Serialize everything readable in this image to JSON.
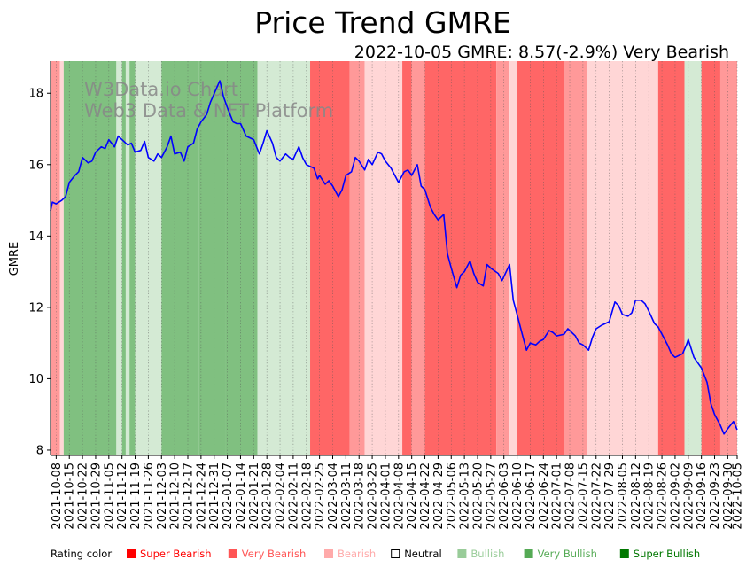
{
  "chart_data": {
    "type": "line",
    "title": "Price Trend GMRE",
    "subtitle": "2022-10-05 GMRE: 8.57(-2.9%) Very Bearish",
    "ylabel": "GMRE",
    "xlabel": "",
    "ylim": [
      7.85,
      18.9
    ],
    "yticks": [
      8,
      10,
      12,
      14,
      16,
      18
    ],
    "x_start": "2021-10-05",
    "x_end": "2022-10-05",
    "xticks": [
      "2021-10-08",
      "2021-10-15",
      "2021-10-22",
      "2021-10-29",
      "2021-11-05",
      "2021-11-12",
      "2021-11-19",
      "2021-11-26",
      "2021-12-03",
      "2021-12-10",
      "2021-12-17",
      "2021-12-24",
      "2021-12-31",
      "2022-01-07",
      "2022-01-14",
      "2022-01-21",
      "2022-01-28",
      "2022-02-04",
      "2022-02-11",
      "2022-02-18",
      "2022-02-25",
      "2022-03-04",
      "2022-03-11",
      "2022-03-18",
      "2022-03-25",
      "2022-04-01",
      "2022-04-08",
      "2022-04-15",
      "2022-04-22",
      "2022-04-29",
      "2022-05-06",
      "2022-05-13",
      "2022-05-20",
      "2022-05-27",
      "2022-06-03",
      "2022-06-10",
      "2022-06-17",
      "2022-06-24",
      "2022-07-01",
      "2022-07-08",
      "2022-07-15",
      "2022-07-22",
      "2022-07-29",
      "2022-08-05",
      "2022-08-12",
      "2022-08-19",
      "2022-08-26",
      "2022-09-02",
      "2022-09-09",
      "2022-09-16",
      "2022-09-23",
      "2022-09-30",
      "2022-10-05"
    ],
    "series": [
      {
        "name": "GMRE",
        "color": "#0000ff",
        "points": [
          [
            "2021-10-05",
            14.7
          ],
          [
            "2021-10-06",
            14.95
          ],
          [
            "2021-10-08",
            14.9
          ],
          [
            "2021-10-11",
            15.0
          ],
          [
            "2021-10-13",
            15.1
          ],
          [
            "2021-10-15",
            15.5
          ],
          [
            "2021-10-18",
            15.7
          ],
          [
            "2021-10-20",
            15.8
          ],
          [
            "2021-10-22",
            16.2
          ],
          [
            "2021-10-25",
            16.05
          ],
          [
            "2021-10-27",
            16.1
          ],
          [
            "2021-10-29",
            16.35
          ],
          [
            "2021-11-01",
            16.5
          ],
          [
            "2021-11-03",
            16.45
          ],
          [
            "2021-11-05",
            16.7
          ],
          [
            "2021-11-08",
            16.5
          ],
          [
            "2021-11-10",
            16.8
          ],
          [
            "2021-11-12",
            16.7
          ],
          [
            "2021-11-15",
            16.55
          ],
          [
            "2021-11-17",
            16.6
          ],
          [
            "2021-11-19",
            16.35
          ],
          [
            "2021-11-22",
            16.4
          ],
          [
            "2021-11-24",
            16.65
          ],
          [
            "2021-11-26",
            16.2
          ],
          [
            "2021-11-29",
            16.1
          ],
          [
            "2021-12-01",
            16.3
          ],
          [
            "2021-12-03",
            16.2
          ],
          [
            "2021-12-06",
            16.5
          ],
          [
            "2021-12-08",
            16.8
          ],
          [
            "2021-12-10",
            16.3
          ],
          [
            "2021-12-13",
            16.35
          ],
          [
            "2021-12-15",
            16.1
          ],
          [
            "2021-12-17",
            16.5
          ],
          [
            "2021-12-20",
            16.6
          ],
          [
            "2021-12-22",
            17.0
          ],
          [
            "2021-12-24",
            17.2
          ],
          [
            "2021-12-27",
            17.4
          ],
          [
            "2021-12-29",
            17.75
          ],
          [
            "2022-01-03",
            18.35
          ],
          [
            "2022-01-05",
            17.9
          ],
          [
            "2022-01-07",
            17.6
          ],
          [
            "2022-01-10",
            17.2
          ],
          [
            "2022-01-12",
            17.15
          ],
          [
            "2022-01-14",
            17.15
          ],
          [
            "2022-01-17",
            16.8
          ],
          [
            "2022-01-19",
            16.75
          ],
          [
            "2022-01-21",
            16.7
          ],
          [
            "2022-01-24",
            16.3
          ],
          [
            "2022-01-26",
            16.6
          ],
          [
            "2022-01-28",
            16.95
          ],
          [
            "2022-01-31",
            16.6
          ],
          [
            "2022-02-02",
            16.2
          ],
          [
            "2022-02-04",
            16.1
          ],
          [
            "2022-02-07",
            16.3
          ],
          [
            "2022-02-09",
            16.2
          ],
          [
            "2022-02-11",
            16.15
          ],
          [
            "2022-02-14",
            16.5
          ],
          [
            "2022-02-16",
            16.2
          ],
          [
            "2022-02-18",
            16.0
          ],
          [
            "2022-02-22",
            15.9
          ],
          [
            "2022-02-24",
            15.6
          ],
          [
            "2022-02-25",
            15.7
          ],
          [
            "2022-02-28",
            15.45
          ],
          [
            "2022-03-02",
            15.55
          ],
          [
            "2022-03-04",
            15.4
          ],
          [
            "2022-03-07",
            15.1
          ],
          [
            "2022-03-09",
            15.3
          ],
          [
            "2022-03-11",
            15.7
          ],
          [
            "2022-03-14",
            15.8
          ],
          [
            "2022-03-16",
            16.2
          ],
          [
            "2022-03-18",
            16.1
          ],
          [
            "2022-03-21",
            15.85
          ],
          [
            "2022-03-23",
            16.15
          ],
          [
            "2022-03-25",
            16.0
          ],
          [
            "2022-03-28",
            16.35
          ],
          [
            "2022-03-30",
            16.3
          ],
          [
            "2022-04-01",
            16.1
          ],
          [
            "2022-04-04",
            15.9
          ],
          [
            "2022-04-06",
            15.7
          ],
          [
            "2022-04-08",
            15.5
          ],
          [
            "2022-04-11",
            15.8
          ],
          [
            "2022-04-13",
            15.85
          ],
          [
            "2022-04-15",
            15.7
          ],
          [
            "2022-04-18",
            16.0
          ],
          [
            "2022-04-20",
            15.4
          ],
          [
            "2022-04-22",
            15.3
          ],
          [
            "2022-04-25",
            14.8
          ],
          [
            "2022-04-27",
            14.6
          ],
          [
            "2022-04-29",
            14.45
          ],
          [
            "2022-05-02",
            14.6
          ],
          [
            "2022-05-04",
            13.5
          ],
          [
            "2022-05-06",
            13.1
          ],
          [
            "2022-05-09",
            12.55
          ],
          [
            "2022-05-11",
            12.9
          ],
          [
            "2022-05-13",
            13.0
          ],
          [
            "2022-05-16",
            13.3
          ],
          [
            "2022-05-18",
            12.95
          ],
          [
            "2022-05-20",
            12.7
          ],
          [
            "2022-05-23",
            12.6
          ],
          [
            "2022-05-25",
            13.2
          ],
          [
            "2022-05-27",
            13.1
          ],
          [
            "2022-05-31",
            12.95
          ],
          [
            "2022-06-02",
            12.75
          ],
          [
            "2022-06-06",
            13.2
          ],
          [
            "2022-06-08",
            12.2
          ],
          [
            "2022-06-10",
            11.8
          ],
          [
            "2022-06-13",
            11.2
          ],
          [
            "2022-06-15",
            10.8
          ],
          [
            "2022-06-17",
            11.0
          ],
          [
            "2022-06-20",
            10.95
          ],
          [
            "2022-06-22",
            11.05
          ],
          [
            "2022-06-24",
            11.1
          ],
          [
            "2022-06-27",
            11.35
          ],
          [
            "2022-06-29",
            11.3
          ],
          [
            "2022-07-01",
            11.2
          ],
          [
            "2022-07-05",
            11.25
          ],
          [
            "2022-07-07",
            11.4
          ],
          [
            "2022-07-11",
            11.2
          ],
          [
            "2022-07-13",
            11.0
          ],
          [
            "2022-07-15",
            10.95
          ],
          [
            "2022-07-18",
            10.8
          ],
          [
            "2022-07-20",
            11.15
          ],
          [
            "2022-07-22",
            11.4
          ],
          [
            "2022-07-25",
            11.5
          ],
          [
            "2022-07-27",
            11.55
          ],
          [
            "2022-07-29",
            11.6
          ],
          [
            "2022-08-01",
            12.15
          ],
          [
            "2022-08-03",
            12.05
          ],
          [
            "2022-08-05",
            11.8
          ],
          [
            "2022-08-08",
            11.75
          ],
          [
            "2022-08-10",
            11.85
          ],
          [
            "2022-08-12",
            12.2
          ],
          [
            "2022-08-15",
            12.2
          ],
          [
            "2022-08-17",
            12.1
          ],
          [
            "2022-08-19",
            11.9
          ],
          [
            "2022-08-22",
            11.55
          ],
          [
            "2022-08-24",
            11.45
          ],
          [
            "2022-08-26",
            11.25
          ],
          [
            "2022-08-29",
            10.95
          ],
          [
            "2022-08-31",
            10.7
          ],
          [
            "2022-09-02",
            10.6
          ],
          [
            "2022-09-06",
            10.7
          ],
          [
            "2022-09-08",
            10.95
          ],
          [
            "2022-09-09",
            11.1
          ],
          [
            "2022-09-12",
            10.6
          ],
          [
            "2022-09-14",
            10.45
          ],
          [
            "2022-09-16",
            10.3
          ],
          [
            "2022-09-19",
            9.9
          ],
          [
            "2022-09-21",
            9.3
          ],
          [
            "2022-09-23",
            9.0
          ],
          [
            "2022-09-26",
            8.7
          ],
          [
            "2022-09-28",
            8.45
          ],
          [
            "2022-09-30",
            8.6
          ],
          [
            "2022-10-03",
            8.8
          ],
          [
            "2022-10-05",
            8.57
          ]
        ]
      }
    ],
    "rating_bands": [
      [
        "2021-10-05",
        "2021-10-10",
        "Very Bearish"
      ],
      [
        "2021-10-10",
        "2021-10-12",
        "Bearish"
      ],
      [
        "2021-10-12",
        "2021-11-09",
        "Very Bullish"
      ],
      [
        "2021-11-09",
        "2021-11-12",
        "Bullish"
      ],
      [
        "2021-11-12",
        "2021-11-14",
        "Very Bullish"
      ],
      [
        "2021-11-14",
        "2021-11-16",
        "Bullish"
      ],
      [
        "2021-11-16",
        "2021-11-19",
        "Very Bullish"
      ],
      [
        "2021-11-19",
        "2021-12-03",
        "Bullish"
      ],
      [
        "2021-12-03",
        "2021-12-23",
        "Very Bullish"
      ],
      [
        "2021-12-23",
        "2022-01-06",
        "Very Bullish"
      ],
      [
        "2022-01-06",
        "2022-01-23",
        "Very Bullish"
      ],
      [
        "2022-01-23",
        "2022-02-20",
        "Bullish"
      ],
      [
        "2022-02-20",
        "2022-03-13",
        "Super Bearish"
      ],
      [
        "2022-03-13",
        "2022-03-21",
        "Very Bearish"
      ],
      [
        "2022-03-21",
        "2022-04-10",
        "Bearish"
      ],
      [
        "2022-04-10",
        "2022-04-15",
        "Super Bearish"
      ],
      [
        "2022-04-15",
        "2022-04-22",
        "Very Bearish"
      ],
      [
        "2022-04-22",
        "2022-05-30",
        "Super Bearish"
      ],
      [
        "2022-05-30",
        "2022-06-06",
        "Very Bearish"
      ],
      [
        "2022-06-06",
        "2022-06-10",
        "Bearish"
      ],
      [
        "2022-06-10",
        "2022-07-05",
        "Super Bearish"
      ],
      [
        "2022-07-05",
        "2022-07-17",
        "Very Bearish"
      ],
      [
        "2022-07-17",
        "2022-08-24",
        "Bearish"
      ],
      [
        "2022-08-24",
        "2022-09-07",
        "Super Bearish"
      ],
      [
        "2022-09-07",
        "2022-09-16",
        "Bullish"
      ],
      [
        "2022-09-16",
        "2022-10-05",
        "Super Bearish"
      ],
      [
        "2022-09-26",
        "2022-10-05",
        "Very Bearish"
      ]
    ],
    "watermark": [
      "W3Data.io Chart",
      "Web3 Data & NFT Platform"
    ],
    "legend_title": "Rating color",
    "legend": [
      {
        "label": "Super Bearish",
        "color": "#ff0000",
        "band_color": "#ff6666"
      },
      {
        "label": "Very Bearish",
        "color": "#ff5555",
        "band_color": "#ff9999"
      },
      {
        "label": "Bearish",
        "color": "#ffaaaa",
        "band_color": "#ffd6d6"
      },
      {
        "label": "Neutral",
        "color": "#000000",
        "band_color": "#ffffff"
      },
      {
        "label": "Bullish",
        "color": "#99cc99",
        "band_color": "#d4ead4"
      },
      {
        "label": "Very Bullish",
        "color": "#55aa55",
        "band_color": "#80c080"
      },
      {
        "label": "Super Bullish",
        "color": "#007700",
        "band_color": "#3a9a3a"
      }
    ]
  }
}
